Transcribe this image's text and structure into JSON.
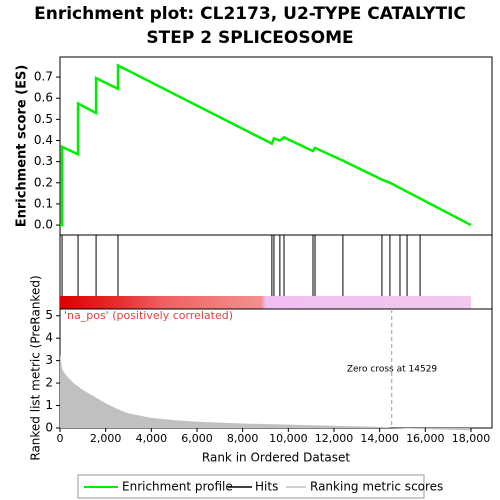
{
  "chart_data": [
    {
      "type": "line",
      "title": "Enrichment plot: CL2173, U2-TYPE CATALYTIC STEP 2 SPLICEOSOME",
      "ylabel": "Enrichment score (ES)",
      "xlim": [
        0,
        18920
      ],
      "ylim": [
        -0.047,
        0.795
      ],
      "yticks": [
        {
          "value": 0,
          "label": "0.0"
        },
        0.1,
        0.2,
        0.3,
        0.4,
        0.5,
        0.6,
        0.7
      ],
      "series": [
        {
          "name": "Enrichment profile",
          "color": "#00ee00",
          "x": [
            0,
            90,
            90,
            790,
            790,
            1580,
            1580,
            2540,
            2540,
            9280,
            9370,
            9630,
            9810,
            11080,
            11170,
            12390,
            14100,
            14450,
            18000
          ],
          "values": [
            0,
            0,
            0.37,
            0.335,
            0.575,
            0.53,
            0.695,
            0.645,
            0.755,
            0.385,
            0.41,
            0.4,
            0.415,
            0.35,
            0.365,
            0.305,
            0.215,
            0.2,
            0
          ]
        }
      ]
    },
    {
      "type": "rug",
      "xlim": [
        0,
        18920
      ],
      "series": [
        {
          "name": "Hits",
          "color": "#000000",
          "x": [
            90,
            790,
            1580,
            2540,
            9280,
            9370,
            9630,
            9810,
            11080,
            11170,
            12390,
            14100,
            14450,
            14890,
            15200,
            15770
          ]
        }
      ]
    },
    {
      "type": "area",
      "xlabel": "Rank in Ordered Dataset",
      "ylabel": "Ranked list metric (PreRanked)",
      "xlim": [
        0,
        18920
      ],
      "ylim": [
        0,
        5.3
      ],
      "xticks": [
        0,
        {
          "value": 2000,
          "label": "2,000"
        },
        {
          "value": 4000,
          "label": "4,000"
        },
        {
          "value": 6000,
          "label": "6,000"
        },
        {
          "value": 8000,
          "label": "8,000"
        },
        {
          "value": 10000,
          "label": "10,000"
        },
        {
          "value": 12000,
          "label": "12,000"
        },
        {
          "value": 14000,
          "label": "14,000"
        },
        {
          "value": 16000,
          "label": "16,000"
        },
        {
          "value": 18000,
          "label": "18,000"
        }
      ],
      "yticks": [
        0,
        1,
        2,
        3,
        4,
        5
      ],
      "annotations": [
        "'na_pos' (positively correlated)",
        "Zero cross at 14529"
      ],
      "zero_cross": 14529,
      "series": [
        {
          "name": "Ranking metric scores",
          "color": "#c0c0c0",
          "x": [
            0,
            100,
            300,
            600,
            1000,
            1500,
            2000,
            2500,
            3000,
            4000,
            5000,
            6000,
            8000,
            10000,
            12000,
            14000,
            14529,
            16000,
            18000
          ],
          "values": [
            3.3,
            2.6,
            2.3,
            2.0,
            1.7,
            1.4,
            1.1,
            0.85,
            0.65,
            0.45,
            0.35,
            0.28,
            0.2,
            0.15,
            0.1,
            0.05,
            0,
            -0.05,
            -0.1
          ]
        }
      ]
    }
  ]
}
